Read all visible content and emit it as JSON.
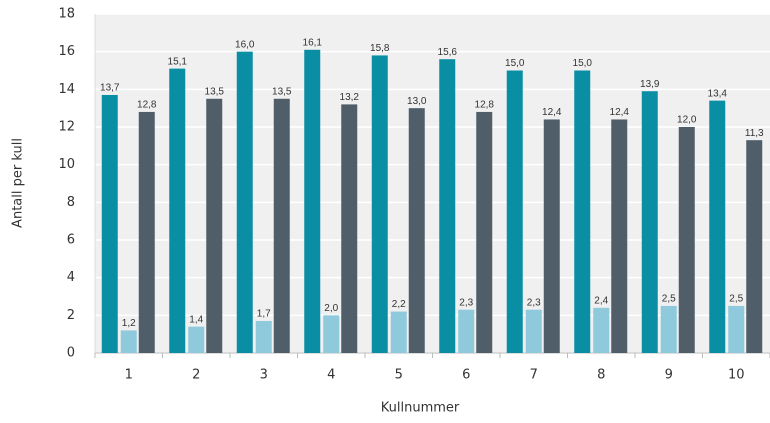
{
  "chart_data": {
    "type": "bar",
    "categories": [
      "1",
      "2",
      "3",
      "4",
      "5",
      "6",
      "7",
      "8",
      "9",
      "10"
    ],
    "x_label": "Kullnummer",
    "y_label": "Antall per kull",
    "series": [
      {
        "color": "#0a8ea4",
        "values": [
          13.7,
          15.1,
          16.0,
          16.1,
          15.8,
          15.6,
          15.0,
          15.0,
          13.9,
          13.4
        ],
        "value_labels": [
          "13,7",
          "15,1",
          "16,0",
          "16,1",
          "15,8",
          "15,6",
          "15,0",
          "15,0",
          "13,9",
          "13,4"
        ]
      },
      {
        "color": "#8ec9dc",
        "values": [
          1.2,
          1.4,
          1.7,
          2.0,
          2.2,
          2.3,
          2.3,
          2.4,
          2.5,
          2.5
        ],
        "value_labels": [
          "1,2",
          "1,4",
          "1,7",
          "2,0",
          "2,2",
          "2,3",
          "2,3",
          "2,4",
          "2,5",
          "2,5"
        ]
      },
      {
        "color": "#4f5e68",
        "values": [
          12.8,
          13.5,
          13.5,
          13.2,
          13.0,
          12.8,
          12.4,
          12.4,
          12.0,
          11.3
        ],
        "value_labels": [
          "12,8",
          "13,5",
          "13,5",
          "13,2",
          "13,0",
          "12,8",
          "12,4",
          "12,4",
          "12,0",
          "11,3"
        ]
      }
    ],
    "ylim": [
      0,
      18
    ],
    "yticks": [
      0,
      2,
      4,
      6,
      8,
      10,
      12,
      14,
      16,
      18
    ],
    "grid": true
  }
}
